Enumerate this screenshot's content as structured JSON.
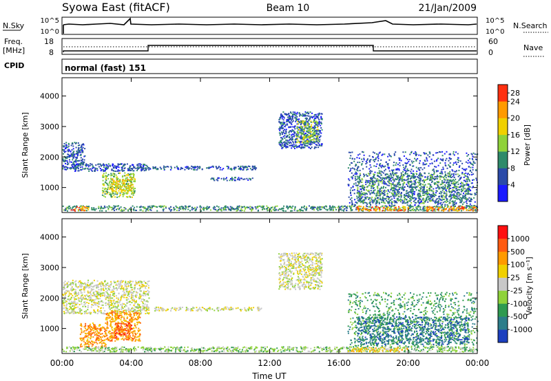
{
  "header": {
    "station": "Syowa East (fitACF)",
    "beam": "Beam 10",
    "date": "21/Jan/2009"
  },
  "top_panel": {
    "left_label": "N.Sky",
    "left_ticks": [
      "10^5",
      "10^0"
    ],
    "right_label": "N.Search",
    "right_ticks": [
      "10^5",
      "10^0"
    ]
  },
  "freq_panel": {
    "left_label_line1": "Freq.",
    "left_label_line2": "[MHz]",
    "left_ticks": [
      "18",
      "8"
    ],
    "right_label": "Nave",
    "right_ticks": [
      "60",
      "0"
    ],
    "cpid_label": "CPID",
    "cpid_value": "normal (fast) 151"
  },
  "chart_data": [
    {
      "type": "heatmap",
      "name": "Power",
      "ylabel": "Slant Range [km]",
      "yticks": [
        "1000",
        "2000",
        "3000",
        "4000"
      ],
      "ylim": [
        180,
        4600
      ],
      "xlim": [
        0,
        24
      ],
      "colorbar_label": "Power [dB]",
      "colorbar_ticks": [
        "4",
        "8",
        "12",
        "16",
        "20",
        "24",
        "28"
      ],
      "colorbar_colors": [
        "#1a1aff",
        "#2a4aa8",
        "#2e8a6a",
        "#8fd23a",
        "#f0d000",
        "#ff9a00",
        "#ff3010"
      ],
      "regions": [
        {
          "t": [
            0.0,
            1.3
          ],
          "r": [
            1600,
            2500
          ],
          "level": 1
        },
        {
          "t": [
            0.6,
            5.0
          ],
          "r": [
            1550,
            1800
          ],
          "level": 1
        },
        {
          "t": [
            2.3,
            4.2
          ],
          "r": [
            700,
            1500
          ],
          "level": 3
        },
        {
          "t": [
            2.8,
            4.0
          ],
          "r": [
            900,
            1300
          ],
          "level": 4
        },
        {
          "t": [
            4.0,
            11.3
          ],
          "r": [
            1600,
            1720
          ],
          "level": 1
        },
        {
          "t": [
            8.5,
            11.0
          ],
          "r": [
            1250,
            1350
          ],
          "level": 1
        },
        {
          "t": [
            12.5,
            15.0
          ],
          "r": [
            2300,
            3500
          ],
          "level": 1
        },
        {
          "t": [
            13.5,
            14.8
          ],
          "r": [
            2500,
            3200
          ],
          "level": 3
        },
        {
          "t": [
            16.5,
            24.0
          ],
          "r": [
            400,
            2200
          ],
          "level": 1
        },
        {
          "t": [
            17.0,
            23.5
          ],
          "r": [
            500,
            1500
          ],
          "level": 2
        },
        {
          "t": [
            0.0,
            24.0
          ],
          "r": [
            250,
            420
          ],
          "level": 2
        },
        {
          "t": [
            0.5,
            1.5
          ],
          "r": [
            250,
            400
          ],
          "level": 5
        },
        {
          "t": [
            17.0,
            20.0
          ],
          "r": [
            250,
            400
          ],
          "level": 5
        },
        {
          "t": [
            21.0,
            24.0
          ],
          "r": [
            250,
            400
          ],
          "level": 5
        }
      ]
    },
    {
      "type": "heatmap",
      "name": "Velocity",
      "ylabel": "Slant Range [km]",
      "yticks": [
        "1000",
        "2000",
        "3000",
        "4000"
      ],
      "ylim": [
        180,
        4600
      ],
      "xlim": [
        0,
        24
      ],
      "xticks": [
        "00:00",
        "04:00",
        "08:00",
        "12:00",
        "16:00",
        "20:00",
        "00:00"
      ],
      "xlabel": "Time UT",
      "colorbar_label": "Velocity [m s⁻¹]",
      "colorbar_ticks": [
        "1000",
        "500",
        "100",
        "25",
        "-25",
        "-100",
        "-500",
        "-1000"
      ],
      "colorbar_colors": [
        "#1c3fbf",
        "#2c7d8a",
        "#2e9a50",
        "#8fd23a",
        "#c8c8c8",
        "#f0d000",
        "#ff9a00",
        "#ff5a10",
        "#ff1010"
      ],
      "regions": [
        {
          "t": [
            0.0,
            5.0
          ],
          "r": [
            1500,
            2600
          ],
          "level": 4
        },
        {
          "t": [
            2.5,
            4.5
          ],
          "r": [
            600,
            1600
          ],
          "level": 6
        },
        {
          "t": [
            3.0,
            4.0
          ],
          "r": [
            700,
            1200
          ],
          "level": 7
        },
        {
          "t": [
            1.0,
            2.5
          ],
          "r": [
            400,
            1200
          ],
          "level": 6
        },
        {
          "t": [
            4.0,
            11.5
          ],
          "r": [
            1600,
            1720
          ],
          "level": 4
        },
        {
          "t": [
            12.5,
            15.0
          ],
          "r": [
            2300,
            3500
          ],
          "level": 4
        },
        {
          "t": [
            16.5,
            24.0
          ],
          "r": [
            400,
            2200
          ],
          "level": 2
        },
        {
          "t": [
            17.0,
            23.5
          ],
          "r": [
            500,
            1400
          ],
          "level": 1
        },
        {
          "t": [
            0.0,
            24.0
          ],
          "r": [
            250,
            420
          ],
          "level": 3
        },
        {
          "t": [
            16.5,
            20.0
          ],
          "r": [
            250,
            400
          ],
          "level": 5
        }
      ]
    }
  ]
}
